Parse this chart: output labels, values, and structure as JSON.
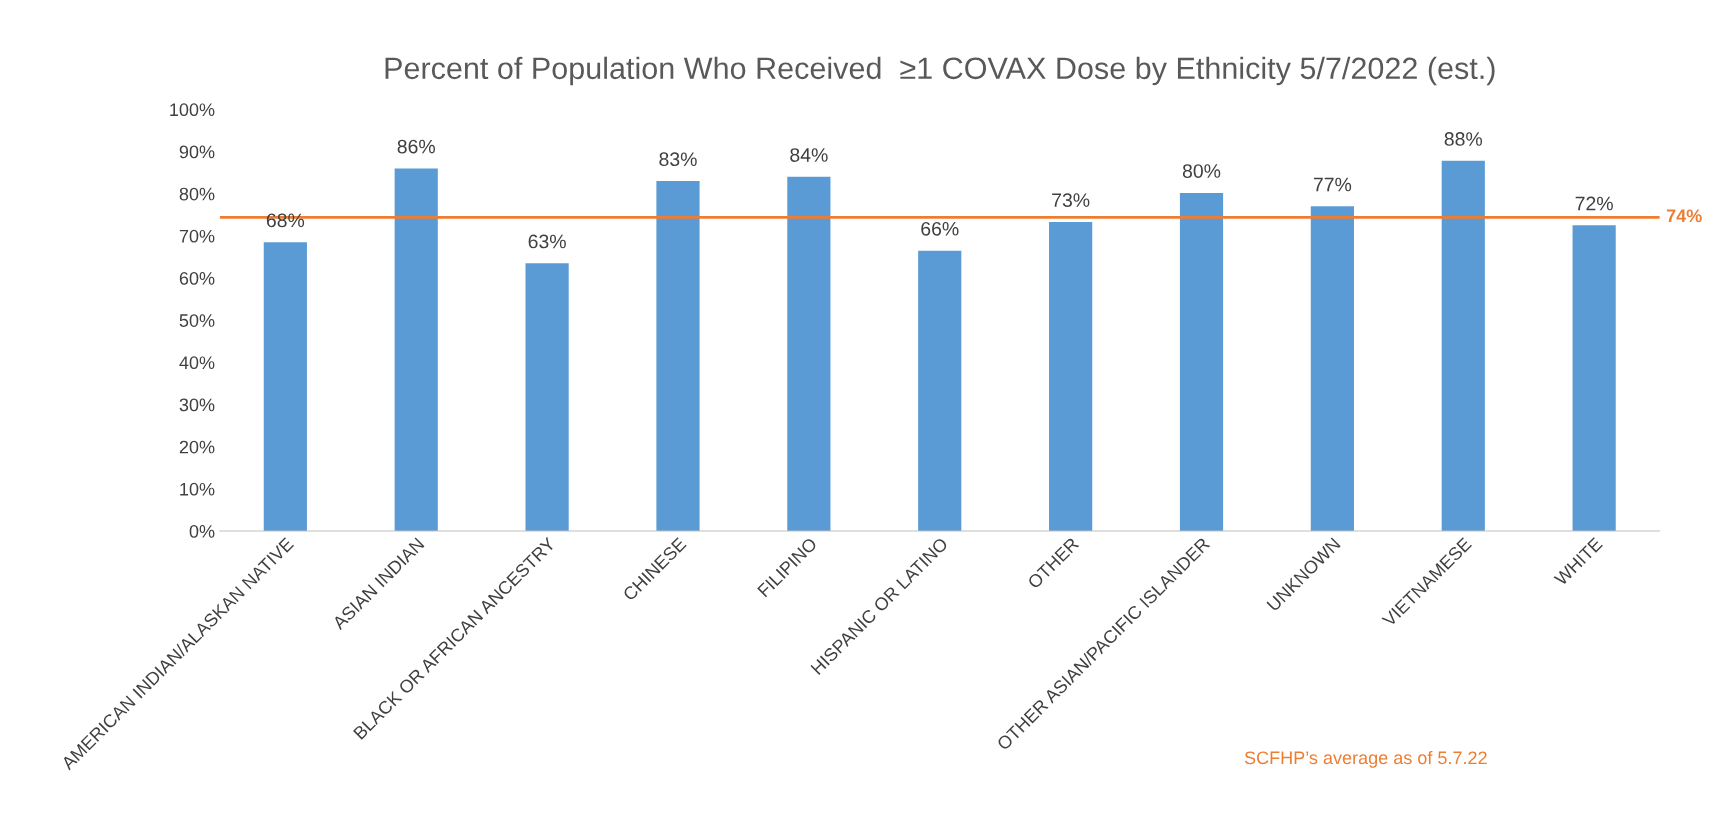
{
  "chart_data": {
    "type": "bar",
    "title": "Percent of Population Who Received  ≥1 COVAX Dose by Ethnicity 5/7/2022 (est.)",
    "categories": [
      "AMERICAN INDIAN/ALASKAN NATIVE",
      "ASIAN INDIAN",
      "BLACK OR AFRICAN ANCESTRY",
      "CHINESE",
      "FILIPINO",
      "HISPANIC OR LATINO",
      "OTHER",
      "OTHER ASIAN/PACIFIC ISLANDER",
      "UNKNOWN",
      "VIETNAMESE",
      "WHITE"
    ],
    "values": [
      68.5,
      86,
      63.5,
      83,
      84,
      66.5,
      73.3,
      80.2,
      77,
      87.8,
      72.5
    ],
    "value_labels": [
      "68%",
      "86%",
      "63%",
      "83%",
      "84%",
      "66%",
      "73%",
      "80%",
      "77%",
      "88%",
      "72%"
    ],
    "color": "#5b9bd5",
    "ylim": [
      0,
      100
    ],
    "yticks": [
      {
        "value": 0,
        "label": "0%"
      },
      {
        "value": 10,
        "label": "10%"
      },
      {
        "value": 20,
        "label": "20%"
      },
      {
        "value": 30,
        "label": "30%"
      },
      {
        "value": 40,
        "label": "40%"
      },
      {
        "value": 50,
        "label": "50%"
      },
      {
        "value": 60,
        "label": "60%"
      },
      {
        "value": 70,
        "label": "70%"
      },
      {
        "value": 80,
        "label": "80%"
      },
      {
        "value": 90,
        "label": "90%"
      },
      {
        "value": 100,
        "label": "100%"
      }
    ],
    "ref_lines": [
      {
        "axis": "y",
        "value": 74.4,
        "label": "74%",
        "color": "#ed7d31",
        "line_style": "solid"
      }
    ],
    "annotations": [
      "SCFHP’s average as of 5.7.22"
    ],
    "grid": false,
    "legend": false
  }
}
